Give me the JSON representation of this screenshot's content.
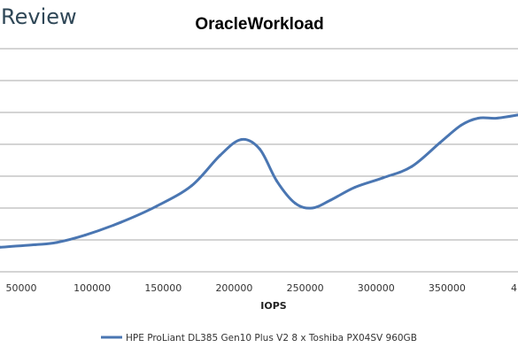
{
  "brand": {
    "text": "Review"
  },
  "chart_data": {
    "type": "line",
    "title": "OracleWorkload",
    "xlabel": "IOPS",
    "ylabel": "",
    "x_tick_labels": [
      "50000",
      "100000",
      "150000",
      "200000",
      "250000",
      "300000",
      "350000",
      "4"
    ],
    "grid": "horizontal",
    "legend_position": "bottom",
    "series": [
      {
        "name": "HPE ProLiant DL385 Gen10 Plus V2 8 x Toshiba PX04SV 960GB",
        "color": "#4a76b2",
        "points": [
          {
            "x": 35000,
            "y": 0.77
          },
          {
            "x": 60000,
            "y": 0.85
          },
          {
            "x": 75000,
            "y": 0.92
          },
          {
            "x": 95000,
            "y": 1.15
          },
          {
            "x": 120000,
            "y": 1.55
          },
          {
            "x": 145000,
            "y": 2.05
          },
          {
            "x": 170000,
            "y": 2.7
          },
          {
            "x": 190000,
            "y": 3.65
          },
          {
            "x": 205000,
            "y": 4.15
          },
          {
            "x": 218000,
            "y": 3.85
          },
          {
            "x": 230000,
            "y": 2.85
          },
          {
            "x": 243000,
            "y": 2.15
          },
          {
            "x": 255000,
            "y": 2.0
          },
          {
            "x": 268000,
            "y": 2.25
          },
          {
            "x": 285000,
            "y": 2.65
          },
          {
            "x": 305000,
            "y": 2.95
          },
          {
            "x": 325000,
            "y": 3.3
          },
          {
            "x": 345000,
            "y": 4.05
          },
          {
            "x": 360000,
            "y": 4.6
          },
          {
            "x": 372000,
            "y": 4.82
          },
          {
            "x": 385000,
            "y": 4.82
          },
          {
            "x": 400000,
            "y": 4.92
          }
        ]
      }
    ],
    "xlim": [
      35000,
      400000
    ],
    "ylim": [
      0,
      7
    ]
  }
}
